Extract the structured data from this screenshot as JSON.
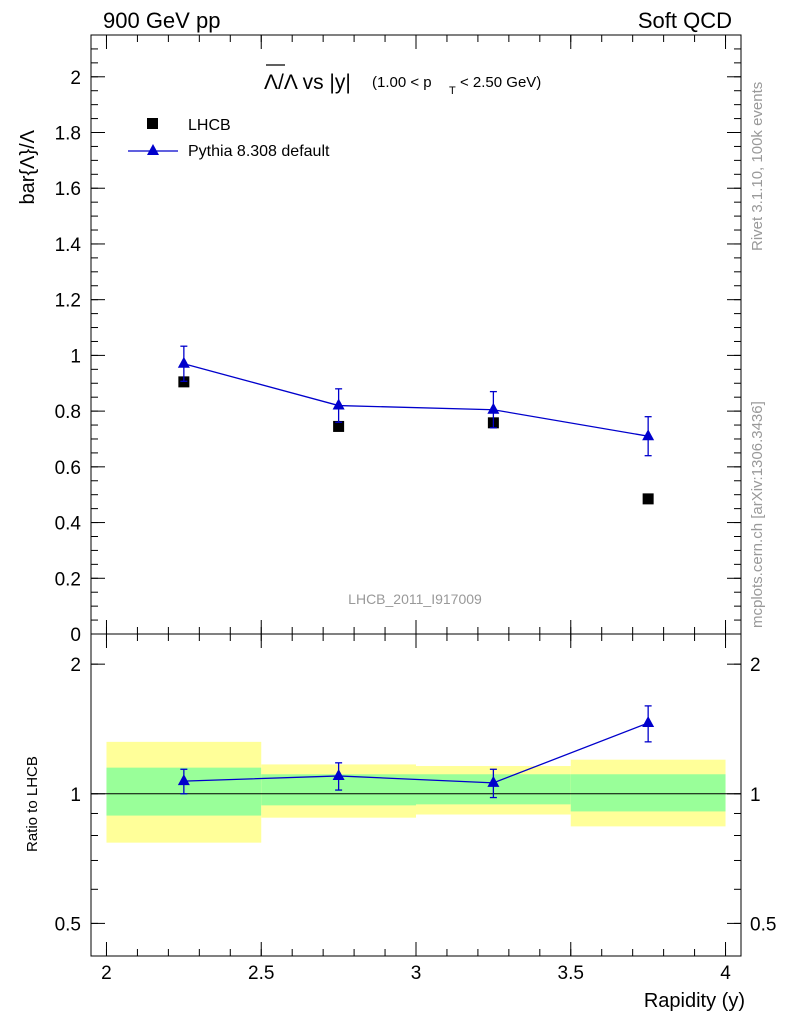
{
  "header": {
    "left": "900 GeV pp",
    "right": "Soft QCD"
  },
  "side_text": {
    "rivet": "Rivet 3.1.10,  100k events",
    "source": "mcplots.cern.ch [arXiv:1306.3436]"
  },
  "chart_data": [
    {
      "type": "scatter",
      "title_main": "Λ/Λ vs |y|",
      "title_cut": "(1.00 < p",
      "title_cut_sub": "T",
      "title_cut_end": " < 2.50 GeV)",
      "ylabel": "bar{Λ}/Λ",
      "analysis_label": "LHCB_2011_I917009",
      "ylim": [
        0,
        2.15
      ],
      "yticks": [
        0,
        0.2,
        0.4,
        0.6,
        0.8,
        1,
        1.2,
        1.4,
        1.6,
        1.8,
        2
      ],
      "ytick_labels": [
        "0",
        "0.2",
        "0.4",
        "0.6",
        "0.8",
        "1",
        "1.2",
        "1.4",
        "1.6",
        "1.8",
        "2"
      ],
      "xlim": [
        1.95,
        4.05
      ],
      "legend": {
        "placement": "top-left",
        "entries": [
          "LHCB",
          "Pythia 8.308 default"
        ]
      },
      "series": [
        {
          "name": "LHCB",
          "marker": "square",
          "color": "#000000",
          "x": [
            2.25,
            2.75,
            3.25,
            3.75
          ],
          "y": [
            0.905,
            0.745,
            0.758,
            0.485
          ],
          "yerr": [
            0.012,
            0.012,
            0.012,
            0.01
          ]
        },
        {
          "name": "Pythia 8.308 default",
          "marker": "triangle",
          "color": "#0000cc",
          "x": [
            2.25,
            2.75,
            3.25,
            3.75
          ],
          "y": [
            0.97,
            0.82,
            0.805,
            0.71
          ],
          "yerr": [
            0.063,
            0.06,
            0.065,
            0.07
          ]
        }
      ]
    },
    {
      "type": "scatter",
      "ylabel": "Ratio to LHCB",
      "xlabel": "Rapidity (y)",
      "yscale": "log",
      "ylim": [
        0.42,
        2.35
      ],
      "yticks": [
        0.5,
        1,
        2
      ],
      "ytick_labels": [
        "0.5",
        "1",
        "2"
      ],
      "xlim": [
        1.95,
        4.05
      ],
      "xticks": [
        2,
        2.5,
        3,
        3.5,
        4
      ],
      "xtick_labels": [
        "2",
        "2.5",
        "3",
        "3.5",
        "4"
      ],
      "reference_line": 1,
      "bands": [
        {
          "x0": 2.0,
          "x1": 2.5,
          "inner": [
            0.89,
            1.15
          ],
          "outer": [
            0.77,
            1.32
          ]
        },
        {
          "x0": 2.5,
          "x1": 3.0,
          "inner": [
            0.94,
            1.11
          ],
          "outer": [
            0.88,
            1.17
          ]
        },
        {
          "x0": 3.0,
          "x1": 3.5,
          "inner": [
            0.945,
            1.11
          ],
          "outer": [
            0.895,
            1.16
          ]
        },
        {
          "x0": 3.5,
          "x1": 4.0,
          "inner": [
            0.91,
            1.11
          ],
          "outer": [
            0.84,
            1.2
          ]
        }
      ],
      "band_colors": {
        "inner": "#99ff99",
        "outer": "#ffff99"
      },
      "series": [
        {
          "name": "Pythia 8.308 default",
          "marker": "triangle",
          "color": "#0000cc",
          "x": [
            2.25,
            2.75,
            3.25,
            3.75
          ],
          "y": [
            1.07,
            1.1,
            1.06,
            1.46
          ],
          "yerr": [
            0.07,
            0.08,
            0.08,
            0.14
          ]
        }
      ]
    }
  ]
}
